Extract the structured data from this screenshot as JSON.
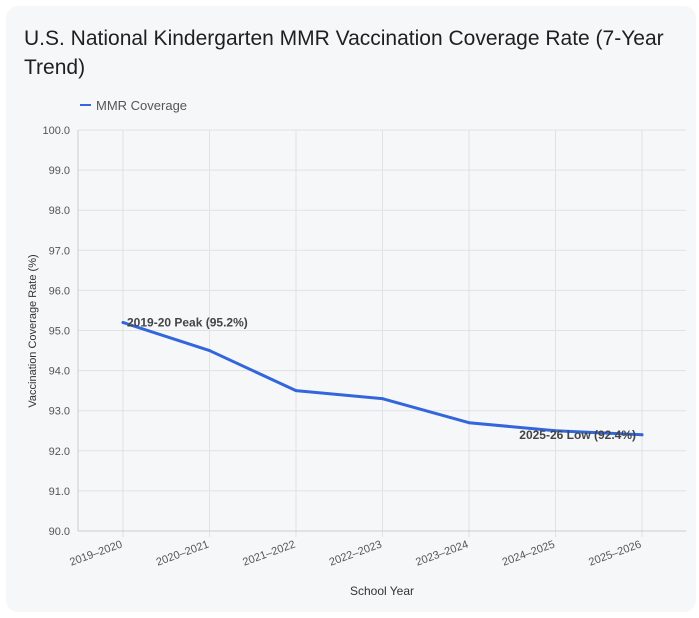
{
  "chart_data": {
    "type": "line",
    "title": "U.S. National Kindergarten MMR Vaccination Coverage Rate (7-Year Trend)",
    "xlabel": "School Year",
    "ylabel": "Vaccination Coverage Rate (%)",
    "categories": [
      "2019–2020",
      "2020–2021",
      "2021–2022",
      "2022–2023",
      "2023–2024",
      "2024–2025",
      "2025–2026"
    ],
    "series": [
      {
        "name": "MMR Coverage",
        "values": [
          95.2,
          94.5,
          93.5,
          93.3,
          92.7,
          92.5,
          92.4
        ],
        "color": "#3366dd"
      }
    ],
    "ylim": [
      90.0,
      100.0
    ],
    "yticks": [
      "90.0",
      "91.0",
      "92.0",
      "93.0",
      "94.0",
      "95.0",
      "96.0",
      "97.0",
      "98.0",
      "99.0",
      "100.0"
    ],
    "grid": true,
    "legend_position": "top-left",
    "annotations": [
      {
        "text": "2019-20 Peak (95.2%)",
        "category_index": 0,
        "value": 95.2
      },
      {
        "text": "2025-26 Low (92.4%)",
        "category_index": 6,
        "value": 92.4
      }
    ]
  }
}
